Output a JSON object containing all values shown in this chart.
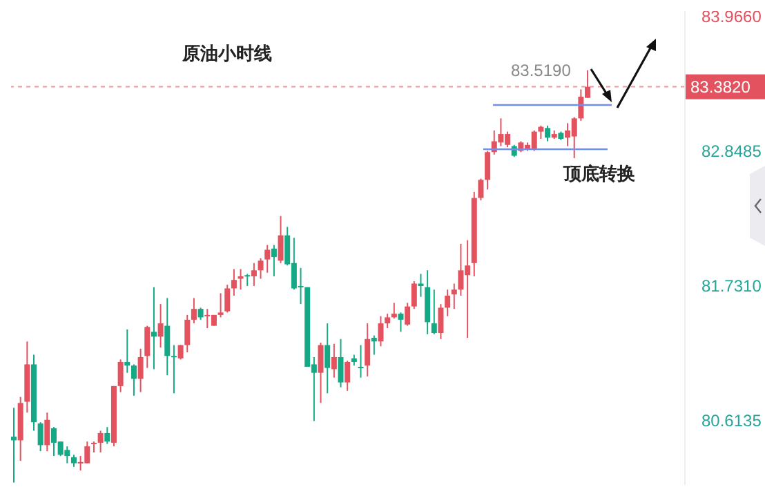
{
  "chart_data": {
    "type": "candlestick",
    "title": "原油小时线",
    "categories": [
      null,
      null,
      null,
      null,
      null,
      null,
      null,
      null,
      null,
      null,
      null,
      null,
      null,
      null,
      null,
      null,
      null,
      null,
      null,
      null,
      null,
      null,
      null,
      null,
      null,
      null,
      null,
      null,
      null,
      null,
      null,
      null,
      null,
      null,
      null,
      null,
      null,
      null,
      null,
      null,
      null,
      null,
      null,
      null,
      null,
      null,
      null,
      null,
      null,
      null,
      null,
      null,
      null,
      null,
      null,
      null,
      null,
      null,
      null,
      null,
      null,
      null,
      null,
      null,
      null,
      null,
      null,
      null,
      null,
      null,
      null,
      null,
      null,
      null,
      null,
      null,
      null,
      null,
      null,
      null,
      null,
      null,
      null,
      null,
      null,
      null,
      null,
      null,
      null,
      null,
      null,
      null,
      null,
      null,
      null,
      null,
      null,
      null,
      null,
      null,
      null
    ],
    "ohlc": [
      [
        80.48,
        80.72,
        80.1,
        80.45
      ],
      [
        80.45,
        80.81,
        80.28,
        80.76
      ],
      [
        80.77,
        81.27,
        80.68,
        81.08
      ],
      [
        81.08,
        81.16,
        80.53,
        80.6
      ],
      [
        80.59,
        80.6,
        80.36,
        80.41
      ],
      [
        80.41,
        80.68,
        80.36,
        80.62
      ],
      [
        80.55,
        80.56,
        80.32,
        80.43
      ],
      [
        80.44,
        80.44,
        80.32,
        80.33
      ],
      [
        80.37,
        80.4,
        80.26,
        80.32
      ],
      [
        80.31,
        80.33,
        80.23,
        80.26
      ],
      [
        80.26,
        80.32,
        80.2,
        80.27
      ],
      [
        80.26,
        80.44,
        80.26,
        80.4
      ],
      [
        80.42,
        80.44,
        80.35,
        80.43
      ],
      [
        80.43,
        80.53,
        80.35,
        80.51
      ],
      [
        80.51,
        80.56,
        80.42,
        80.44
      ],
      [
        80.43,
        80.9,
        80.4,
        80.9
      ],
      [
        80.9,
        81.12,
        80.85,
        81.1
      ],
      [
        81.1,
        81.37,
        81.01,
        81.07
      ],
      [
        81.07,
        81.08,
        80.82,
        80.96
      ],
      [
        80.96,
        81.21,
        80.85,
        81.14
      ],
      [
        81.15,
        81.4,
        81.05,
        81.39
      ],
      [
        81.35,
        81.72,
        81.04,
        81.31
      ],
      [
        81.31,
        81.58,
        81.22,
        81.42
      ],
      [
        81.4,
        81.63,
        80.99,
        81.15
      ],
      [
        81.15,
        81.24,
        80.84,
        81.14
      ],
      [
        81.13,
        81.24,
        81.12,
        81.24
      ],
      [
        81.24,
        81.49,
        81.18,
        81.45
      ],
      [
        81.45,
        81.63,
        81.42,
        81.54
      ],
      [
        81.54,
        81.55,
        81.45,
        81.47
      ],
      [
        81.48,
        81.54,
        81.38,
        81.49
      ],
      [
        81.4,
        81.49,
        81.4,
        81.49
      ],
      [
        81.49,
        81.67,
        81.47,
        81.51
      ],
      [
        81.52,
        81.74,
        81.51,
        81.71
      ],
      [
        81.71,
        81.87,
        81.65,
        81.78
      ],
      [
        81.79,
        81.87,
        81.7,
        81.81
      ],
      [
        81.82,
        81.83,
        81.73,
        81.81
      ],
      [
        81.81,
        81.92,
        81.73,
        81.86
      ],
      [
        81.86,
        81.96,
        81.79,
        81.94
      ],
      [
        81.95,
        82.07,
        81.84,
        82.03
      ],
      [
        82.04,
        82.07,
        81.81,
        81.97
      ],
      [
        81.94,
        82.31,
        81.92,
        82.15
      ],
      [
        82.15,
        82.22,
        81.9,
        81.91
      ],
      [
        81.92,
        82.13,
        81.7,
        81.71
      ],
      [
        81.73,
        81.88,
        81.58,
        81.72
      ],
      [
        81.72,
        81.72,
        81.06,
        81.06
      ],
      [
        81.08,
        81.14,
        80.61,
        81.01
      ],
      [
        81.01,
        81.26,
        80.76,
        81.24
      ],
      [
        81.24,
        81.42,
        80.84,
        81.05
      ],
      [
        81.04,
        81.25,
        80.97,
        81.14
      ],
      [
        81.14,
        81.29,
        80.89,
        80.93
      ],
      [
        80.93,
        81.11,
        80.86,
        81.1
      ],
      [
        81.13,
        81.16,
        81.07,
        81.1
      ],
      [
        81.06,
        81.24,
        80.97,
        81.05
      ],
      [
        81.07,
        81.42,
        80.98,
        81.29
      ],
      [
        81.3,
        81.32,
        81.16,
        81.27
      ],
      [
        81.27,
        81.48,
        81.23,
        81.42
      ],
      [
        81.42,
        81.5,
        81.38,
        81.47
      ],
      [
        81.47,
        81.59,
        81.46,
        81.5
      ],
      [
        81.5,
        81.51,
        81.35,
        81.45
      ],
      [
        81.41,
        81.59,
        81.4,
        81.56
      ],
      [
        81.56,
        81.77,
        81.54,
        81.75
      ],
      [
        81.75,
        81.83,
        81.64,
        81.73
      ],
      [
        81.72,
        81.86,
        81.33,
        81.43
      ],
      [
        81.42,
        81.7,
        81.33,
        81.34
      ],
      [
        81.34,
        81.58,
        81.29,
        81.55
      ],
      [
        81.55,
        81.7,
        81.48,
        81.65
      ],
      [
        81.66,
        81.75,
        81.54,
        81.7
      ],
      [
        81.7,
        82.08,
        81.65,
        81.86
      ],
      [
        81.82,
        82.11,
        81.3,
        81.9
      ],
      [
        81.92,
        82.51,
        81.81,
        82.46
      ],
      [
        82.46,
        82.62,
        82.44,
        82.61
      ],
      [
        82.61,
        82.85,
        82.53,
        82.84
      ],
      [
        82.84,
        83.02,
        82.82,
        82.93
      ],
      [
        82.92,
        83.12,
        82.89,
        82.99
      ],
      [
        82.9,
        83.01,
        82.88,
        82.99
      ],
      [
        82.89,
        82.9,
        82.8,
        82.81
      ],
      [
        82.85,
        82.93,
        82.84,
        82.92
      ],
      [
        82.86,
        82.92,
        82.85,
        82.9
      ],
      [
        82.86,
        83.02,
        82.85,
        83.01
      ],
      [
        83.01,
        83.06,
        82.95,
        83.05
      ],
      [
        83.04,
        83.06,
        82.93,
        82.96
      ],
      [
        82.96,
        83.02,
        82.95,
        82.99
      ],
      [
        83.0,
        83.01,
        82.94,
        82.95
      ],
      [
        82.96,
        83.08,
        82.89,
        83.02
      ],
      [
        82.97,
        83.13,
        82.79,
        83.12
      ],
      [
        83.12,
        83.36,
        83.1,
        83.3
      ],
      [
        83.29,
        83.519,
        83.29,
        83.382
      ],
      null,
      null,
      null,
      null,
      null,
      null,
      null,
      null,
      null,
      null,
      null,
      null,
      null,
      null
    ],
    "colors": [
      "#14a884",
      "#e2525f",
      "#e2525f",
      "#14a884",
      "#14a884",
      "#e2525f",
      "#14a884",
      "#14a884",
      "#14a884",
      "#14a884",
      "#e2525f",
      "#e2525f",
      "#e2525f",
      "#e2525f",
      "#14a884",
      "#e2525f",
      "#e2525f",
      "#14a884",
      "#14a884",
      "#e2525f",
      "#e2525f",
      "#14a884",
      "#e2525f",
      "#14a884",
      "#14a884",
      "#e2525f",
      "#e2525f",
      "#e2525f",
      "#14a884",
      "#e2525f",
      "#e2525f",
      "#e2525f",
      "#e2525f",
      "#e2525f",
      "#e2525f",
      "#14a884",
      "#e2525f",
      "#e2525f",
      "#e2525f",
      "#14a884",
      "#e2525f",
      "#14a884",
      "#14a884",
      "#14a884",
      "#14a884",
      "#14a884",
      "#e2525f",
      "#14a884",
      "#e2525f",
      "#14a884",
      "#e2525f",
      "#14a884",
      "#14a884",
      "#e2525f",
      "#14a884",
      "#e2525f",
      "#e2525f",
      "#e2525f",
      "#14a884",
      "#e2525f",
      "#e2525f",
      "#14a884",
      "#14a884",
      "#14a884",
      "#e2525f",
      "#e2525f",
      "#e2525f",
      "#e2525f",
      "#e2525f",
      "#e2525f",
      "#e2525f",
      "#e2525f",
      "#e2525f",
      "#e2525f",
      "#e2525f",
      "#14a884",
      "#e2525f",
      "#e2525f",
      "#e2525f",
      "#e2525f",
      "#14a884",
      "#e2525f",
      "#14a884",
      "#e2525f",
      "#e2525f",
      "#e2525f",
      "#e2525f",
      null,
      null,
      null,
      null,
      null,
      null,
      null,
      null,
      null,
      null,
      null,
      null,
      null,
      null
    ],
    "ylim": [
      80.08,
      84.01
    ],
    "yticks": [
      {
        "value": 83.966,
        "label": "83.9660"
      },
      {
        "value": 82.8485,
        "label": "82.8485"
      },
      {
        "value": 81.731,
        "label": "81.7310"
      },
      {
        "value": 80.6135,
        "label": "80.6135"
      }
    ],
    "ref_lines": [
      {
        "axis": "y",
        "value": 83.382,
        "label": "83.3820",
        "color": "#e2525f",
        "line_style": "dashed"
      }
    ],
    "annotations": [
      "83.5190",
      "顶底转换"
    ],
    "tick_labels": "y"
  }
}
